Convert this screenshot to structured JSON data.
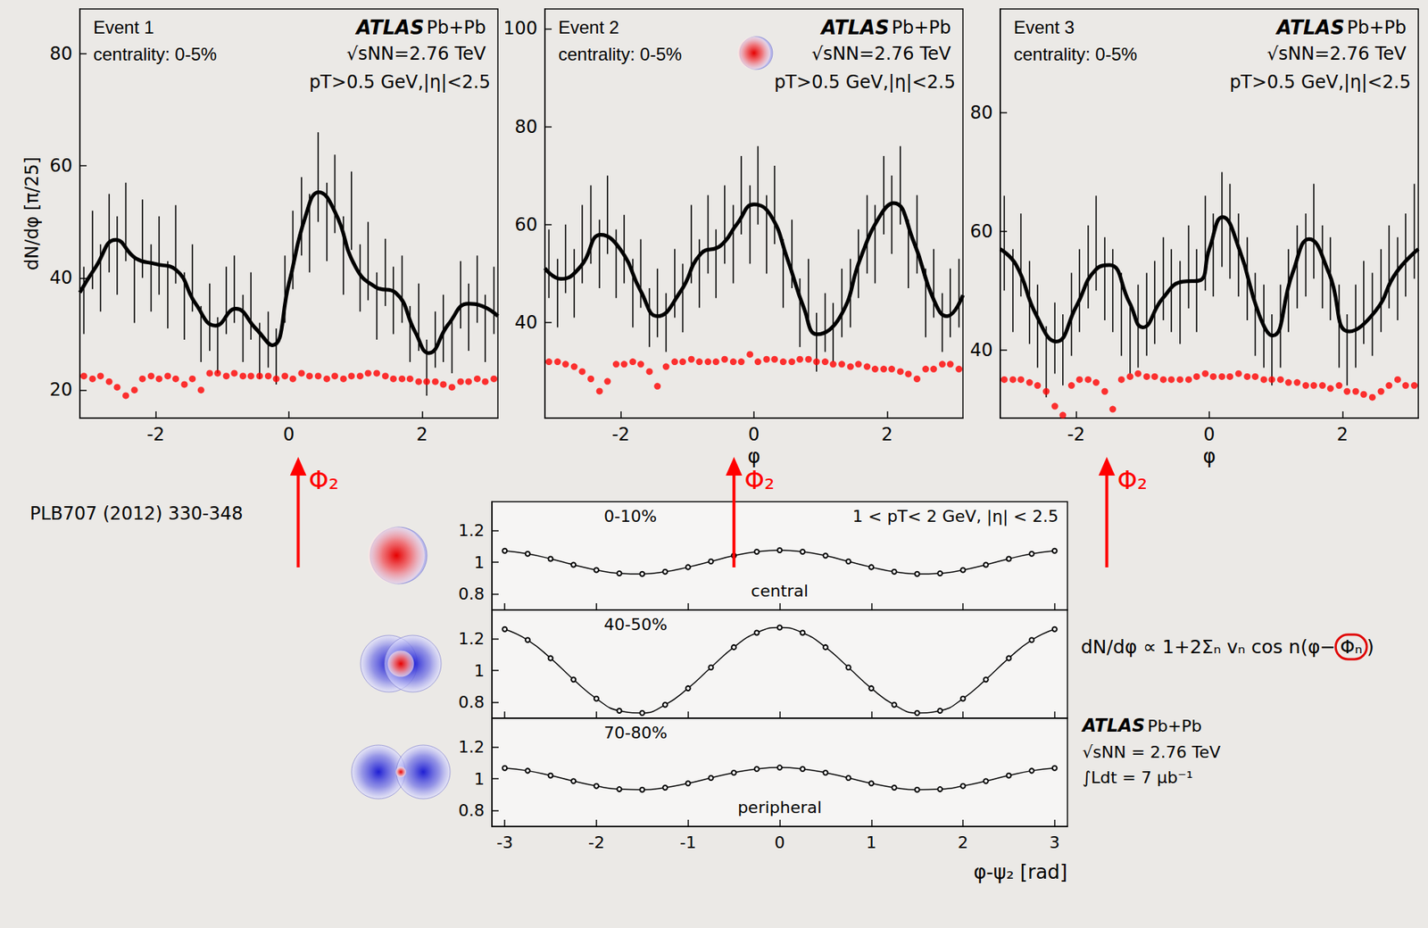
{
  "chart_data": [
    {
      "type": "line",
      "title": "Event 1",
      "subtitle": "centrality: 0-5%",
      "experiment": "ATLAS",
      "system": "Pb+Pb",
      "energy": "√sNN=2.76 TeV",
      "cuts": "pT>0.5 GeV,|η|<2.5",
      "ylabel": "dN/dφ [π/25]",
      "xlim": [
        -3.14,
        3.14
      ],
      "xticks": [
        -2,
        0,
        2
      ],
      "ylim": [
        15,
        88
      ],
      "yticks": [
        20,
        40,
        60,
        80
      ],
      "grid": false,
      "event_plane": {
        "value": 0.14,
        "label": "Φ₂"
      },
      "x": [
        -3.08,
        -2.95,
        -2.83,
        -2.7,
        -2.58,
        -2.45,
        -2.32,
        -2.2,
        -2.07,
        -1.95,
        -1.82,
        -1.7,
        -1.57,
        -1.45,
        -1.32,
        -1.19,
        -1.07,
        -0.94,
        -0.82,
        -0.69,
        -0.57,
        -0.44,
        -0.31,
        -0.19,
        -0.06,
        0.06,
        0.19,
        0.31,
        0.44,
        0.57,
        0.69,
        0.82,
        0.94,
        1.07,
        1.19,
        1.32,
        1.45,
        1.57,
        1.7,
        1.82,
        1.95,
        2.07,
        2.2,
        2.32,
        2.45,
        2.58,
        2.7,
        2.83,
        2.95,
        3.08
      ],
      "series": [
        {
          "type": "errorbar",
          "color": "#000000",
          "values": [
            36,
            45,
            40,
            48,
            44,
            50,
            38,
            47,
            40,
            44,
            37,
            46,
            35,
            40,
            30,
            33,
            28,
            36,
            38,
            31,
            35,
            27,
            29,
            26,
            38,
            45,
            51,
            48,
            58,
            50,
            55,
            44,
            52,
            40,
            43,
            35,
            41,
            36,
            38,
            30,
            33,
            24,
            29,
            31,
            28,
            37,
            33,
            38,
            31,
            36
          ],
          "errors": [
            6,
            7,
            6,
            7,
            7,
            7,
            6,
            7,
            6,
            7,
            6,
            7,
            6,
            6,
            5,
            6,
            5,
            6,
            6,
            6,
            6,
            5,
            5,
            5,
            6,
            7,
            7,
            7,
            8,
            7,
            7,
            7,
            7,
            6,
            7,
            6,
            6,
            6,
            6,
            5,
            6,
            5,
            5,
            6,
            5,
            6,
            6,
            6,
            6,
            6
          ]
        },
        {
          "type": "line",
          "color": "#000000",
          "line_style": "solid",
          "x": [
            -3.14,
            -2.9,
            -2.6,
            -2.3,
            -2.0,
            -1.7,
            -1.4,
            -1.1,
            -0.8,
            -0.5,
            -0.25,
            0,
            0.25,
            0.45,
            0.7,
            1.0,
            1.3,
            1.6,
            1.9,
            2.1,
            2.4,
            2.7,
            2.9,
            3.14
          ],
          "values": [
            37.4,
            42,
            46.8,
            43.5,
            42.5,
            41.5,
            35.4,
            31.5,
            34.5,
            31,
            28,
            39,
            51,
            55.3,
            51.6,
            42,
            38.4,
            37.4,
            30.3,
            26.6,
            31.8,
            35.4,
            35,
            33.2
          ]
        },
        {
          "type": "scatter",
          "color": "#ff0000",
          "marker": "circle",
          "values": [
            22.5,
            22,
            22.5,
            21.5,
            20.5,
            19,
            20,
            22,
            22.5,
            22,
            22.5,
            22,
            21,
            22,
            20,
            23,
            23,
            22.5,
            23,
            22.5,
            22.5,
            22.5,
            22.5,
            22,
            22.5,
            22,
            23,
            22.5,
            22.5,
            22,
            22.5,
            22,
            22.5,
            22.5,
            23,
            23,
            22.5,
            22,
            22,
            22,
            21.5,
            21.5,
            21.5,
            21,
            20.5,
            21.5,
            21.5,
            22,
            21.5,
            22
          ]
        }
      ]
    },
    {
      "type": "line",
      "title": "Event 2",
      "subtitle": "centrality: 0-5%",
      "experiment": "ATLAS",
      "system": "Pb+Pb",
      "energy": "√sNN=2.76 TeV",
      "cuts": "pT>0.5 GeV,|η|<2.5",
      "xlabel": "φ",
      "xlim": [
        -3.14,
        3.14
      ],
      "xticks": [
        -2,
        0,
        2
      ],
      "ylim": [
        20.5,
        104
      ],
      "yticks": [
        40,
        60,
        80,
        100
      ],
      "grid": false,
      "event_plane": {
        "value": -0.3,
        "label": "Φ₂"
      },
      "x": [
        -3.08,
        -2.95,
        -2.83,
        -2.7,
        -2.58,
        -2.45,
        -2.32,
        -2.2,
        -2.07,
        -1.95,
        -1.82,
        -1.7,
        -1.57,
        -1.45,
        -1.32,
        -1.19,
        -1.07,
        -0.94,
        -0.82,
        -0.69,
        -0.57,
        -0.44,
        -0.31,
        -0.19,
        -0.06,
        0.06,
        0.19,
        0.31,
        0.44,
        0.57,
        0.69,
        0.82,
        0.94,
        1.07,
        1.19,
        1.32,
        1.45,
        1.57,
        1.7,
        1.82,
        1.95,
        2.07,
        2.2,
        2.32,
        2.45,
        2.58,
        2.7,
        2.83,
        2.95,
        3.08
      ],
      "series": [
        {
          "type": "errorbar",
          "color": "#000000",
          "values": [
            52,
            46,
            53,
            48,
            56,
            60,
            54,
            62,
            52,
            55,
            46,
            50,
            41,
            44,
            40,
            48,
            45,
            56,
            50,
            58,
            52,
            60,
            56,
            66,
            60,
            68,
            58,
            64,
            50,
            54,
            42,
            46,
            36,
            40,
            38,
            44,
            46,
            52,
            58,
            56,
            66,
            62,
            68,
            54,
            58,
            44,
            48,
            40,
            44,
            46
          ],
          "errors": [
            7,
            7,
            7,
            7,
            8,
            8,
            7,
            8,
            7,
            7,
            7,
            7,
            6,
            7,
            6,
            7,
            7,
            8,
            7,
            8,
            7,
            8,
            8,
            8,
            8,
            8,
            8,
            8,
            7,
            7,
            7,
            7,
            6,
            6,
            6,
            7,
            7,
            7,
            8,
            8,
            8,
            8,
            8,
            7,
            8,
            7,
            7,
            6,
            7,
            7
          ]
        },
        {
          "type": "line",
          "color": "#000000",
          "line_style": "solid",
          "x": [
            -3.14,
            -2.9,
            -2.6,
            -2.3,
            -2.0,
            -1.7,
            -1.45,
            -1.1,
            -0.8,
            -0.5,
            -0.25,
            0,
            0.25,
            0.5,
            0.75,
            0.95,
            1.3,
            1.6,
            1.9,
            2.1,
            2.4,
            2.7,
            2.9,
            3.14
          ],
          "values": [
            51.1,
            48.9,
            51.5,
            57.9,
            54.8,
            46.4,
            41.3,
            46.4,
            54,
            55.7,
            60.2,
            64.1,
            61.9,
            53.1,
            43,
            37.6,
            41.3,
            53.1,
            61.9,
            64.4,
            56.5,
            44.7,
            41.3,
            45.6
          ]
        },
        {
          "type": "scatter",
          "color": "#ff0000",
          "marker": "circle",
          "values": [
            32,
            32,
            31.5,
            31,
            30,
            28.5,
            26,
            28,
            31.5,
            31.5,
            32,
            31.5,
            30,
            27,
            31,
            32,
            32,
            32.5,
            32,
            32,
            32,
            32.5,
            32,
            32,
            33.5,
            32,
            32.5,
            32.5,
            32,
            32,
            32.5,
            32.5,
            32,
            32,
            31.5,
            31.5,
            31,
            31.5,
            31,
            30.5,
            30.5,
            30.5,
            30,
            29.5,
            28.5,
            30.5,
            30.5,
            31.5,
            31.5,
            30.5
          ]
        }
      ]
    },
    {
      "type": "line",
      "title": "Event 3",
      "subtitle": "centrality: 0-5%",
      "experiment": "ATLAS",
      "system": "Pb+Pb",
      "energy": "√sNN=2.76 TeV",
      "cuts": "pT>0.5 GeV,|η|<2.5",
      "xlabel": "φ",
      "xlim": [
        -3.14,
        3.14
      ],
      "xticks": [
        -2,
        0,
        2
      ],
      "ylim": [
        28.5,
        97.5
      ],
      "yticks": [
        40,
        60,
        80
      ],
      "grid": false,
      "event_plane": {
        "value": -1.54,
        "label": "Φ₂"
      },
      "x": [
        -3.08,
        -2.95,
        -2.83,
        -2.7,
        -2.58,
        -2.45,
        -2.32,
        -2.2,
        -2.07,
        -1.95,
        -1.82,
        -1.7,
        -1.57,
        -1.45,
        -1.32,
        -1.19,
        -1.07,
        -0.94,
        -0.82,
        -0.69,
        -0.57,
        -0.44,
        -0.31,
        -0.19,
        -0.06,
        0.06,
        0.19,
        0.31,
        0.44,
        0.57,
        0.69,
        0.82,
        0.94,
        1.07,
        1.19,
        1.32,
        1.45,
        1.57,
        1.7,
        1.82,
        1.95,
        2.07,
        2.2,
        2.32,
        2.45,
        2.58,
        2.7,
        2.83,
        2.95,
        3.08
      ],
      "series": [
        {
          "type": "errorbar",
          "color": "#000000",
          "values": [
            58,
            50,
            56,
            48,
            44,
            38,
            42,
            40,
            46,
            50,
            54,
            58,
            52,
            50,
            46,
            42,
            44,
            46,
            48,
            52,
            50,
            48,
            54,
            50,
            58,
            56,
            62,
            60,
            56,
            52,
            46,
            44,
            40,
            44,
            50,
            54,
            56,
            60,
            54,
            52,
            44,
            40,
            44,
            48,
            46,
            50,
            54,
            52,
            56,
            60
          ],
          "errors": [
            8,
            7,
            7,
            7,
            7,
            6,
            6,
            6,
            7,
            7,
            7,
            8,
            7,
            7,
            7,
            6,
            7,
            7,
            7,
            7,
            7,
            7,
            7,
            7,
            8,
            7,
            8,
            8,
            7,
            7,
            7,
            7,
            6,
            7,
            7,
            7,
            7,
            8,
            7,
            7,
            7,
            6,
            7,
            7,
            7,
            7,
            7,
            7,
            7,
            8
          ]
        },
        {
          "type": "line",
          "color": "#000000",
          "line_style": "solid",
          "x": [
            -3.14,
            -2.9,
            -2.6,
            -2.3,
            -2.0,
            -1.7,
            -1.5,
            -1.2,
            -1.0,
            -0.7,
            -0.4,
            -0.15,
            0,
            0.2,
            0.45,
            0.75,
            0.95,
            1.25,
            1.5,
            1.8,
            2.1,
            2.5,
            2.8,
            3.14
          ],
          "values": [
            57,
            54.3,
            45.9,
            41.4,
            47.3,
            53.6,
            54.3,
            48,
            43.8,
            48.7,
            51.5,
            51.7,
            57,
            62.4,
            57,
            45.9,
            42.4,
            52.9,
            58.7,
            52.9,
            43.1,
            46.6,
            52.9,
            57
          ]
        },
        {
          "type": "scatter",
          "color": "#ff0000",
          "marker": "circle",
          "values": [
            35,
            35,
            35,
            34.5,
            34,
            33,
            30.5,
            29,
            34,
            35,
            35,
            34.5,
            33,
            30,
            35,
            35.5,
            36,
            35.5,
            35.5,
            35,
            35,
            35,
            35,
            35.5,
            36,
            35.5,
            35.5,
            35.5,
            36,
            35.5,
            35.5,
            35,
            35,
            35,
            34.5,
            34.5,
            34,
            34,
            34,
            33.5,
            34,
            33,
            33,
            32.5,
            32,
            33,
            34,
            35,
            34,
            34
          ]
        }
      ]
    },
    {
      "type": "line",
      "title": "0-10%",
      "label": "central",
      "note": "1 < pT< 2 GeV, |η| < 2.5",
      "tick_labels": "y",
      "xlim": [
        -3.14,
        3.14
      ],
      "xticks": [
        -3,
        -2,
        -1,
        0,
        1,
        2,
        3
      ],
      "ylim": [
        0.7,
        1.38
      ],
      "yticks": [
        0.8,
        1,
        1.2
      ],
      "grid": false,
      "x": [
        -3,
        -2.75,
        -2.5,
        -2.25,
        -2,
        -1.75,
        -1.5,
        -1.25,
        -1,
        -0.75,
        -0.5,
        -0.25,
        0,
        0.25,
        0.5,
        0.75,
        1,
        1.25,
        1.5,
        1.75,
        2,
        2.25,
        2.5,
        2.75,
        3
      ],
      "series": [
        {
          "type": "line",
          "color": "#000000",
          "marker": "open_circle",
          "line_style": "solid",
          "values": [
            1.072,
            1.053,
            1.021,
            0.984,
            0.951,
            0.93,
            0.926,
            0.94,
            0.969,
            1.005,
            1.041,
            1.066,
            1.075,
            1.066,
            1.041,
            1.005,
            0.969,
            0.94,
            0.926,
            0.93,
            0.951,
            0.984,
            1.021,
            1.053,
            1.072
          ]
        }
      ]
    },
    {
      "type": "line",
      "title": "40-50%",
      "tick_labels": "y",
      "xlim": [
        -3.14,
        3.14
      ],
      "xticks": [
        -3,
        -2,
        -1,
        0,
        1,
        2,
        3
      ],
      "ylim": [
        0.7,
        1.38
      ],
      "yticks": [
        0.8,
        1,
        1.2
      ],
      "grid": false,
      "x": [
        -3,
        -2.75,
        -2.5,
        -2.25,
        -2,
        -1.75,
        -1.5,
        -1.25,
        -1,
        -0.75,
        -0.5,
        -0.25,
        0,
        0.25,
        0.5,
        0.75,
        1,
        1.25,
        1.5,
        1.75,
        2,
        2.25,
        2.5,
        2.75,
        3
      ],
      "series": [
        {
          "type": "line",
          "color": "#000000",
          "marker": "open_circle",
          "line_style": "solid",
          "values": [
            1.259,
            1.191,
            1.077,
            0.943,
            0.823,
            0.747,
            0.733,
            0.784,
            0.888,
            1.019,
            1.146,
            1.237,
            1.27,
            1.237,
            1.146,
            1.019,
            0.888,
            0.784,
            0.733,
            0.747,
            0.823,
            0.943,
            1.077,
            1.191,
            1.259
          ]
        }
      ]
    },
    {
      "type": "line",
      "title": "70-80%",
      "label": "peripheral",
      "xlabel": "φ-ψ₂ [rad]",
      "xlim": [
        -3.14,
        3.14
      ],
      "xticks": [
        -3,
        -2,
        -1,
        0,
        1,
        2,
        3
      ],
      "ylim": [
        0.7,
        1.38
      ],
      "yticks": [
        0.8,
        1,
        1.2
      ],
      "grid": false,
      "x": [
        -3,
        -2.75,
        -2.5,
        -2.25,
        -2,
        -1.75,
        -1.5,
        -1.25,
        -1,
        -0.75,
        -0.5,
        -0.25,
        0,
        0.25,
        0.5,
        0.75,
        1,
        1.25,
        1.5,
        1.75,
        2,
        2.25,
        2.5,
        2.75,
        3
      ],
      "series": [
        {
          "type": "line",
          "color": "#000000",
          "marker": "open_circle",
          "line_style": "solid",
          "values": [
            1.067,
            1.05,
            1.02,
            0.985,
            0.954,
            0.934,
            0.931,
            0.944,
            0.971,
            1.005,
            1.038,
            1.061,
            1.07,
            1.061,
            1.038,
            1.005,
            0.971,
            0.944,
            0.931,
            0.934,
            0.954,
            0.985,
            1.02,
            1.05,
            1.067
          ]
        }
      ]
    }
  ],
  "slide": {
    "reference": "PLB707 (2012) 330-348",
    "formula": "dN/dφ ∝ 1+2Σₙ vₙ cos n(φ−Φₙ)",
    "formula_highlight": "Φₙ",
    "bottom_header": {
      "experiment": "ATLAS",
      "system": "Pb+Pb",
      "energy": "√sNN = 2.76 TeV",
      "luminosity": "∫Ldt = 7 μb⁻¹"
    }
  }
}
